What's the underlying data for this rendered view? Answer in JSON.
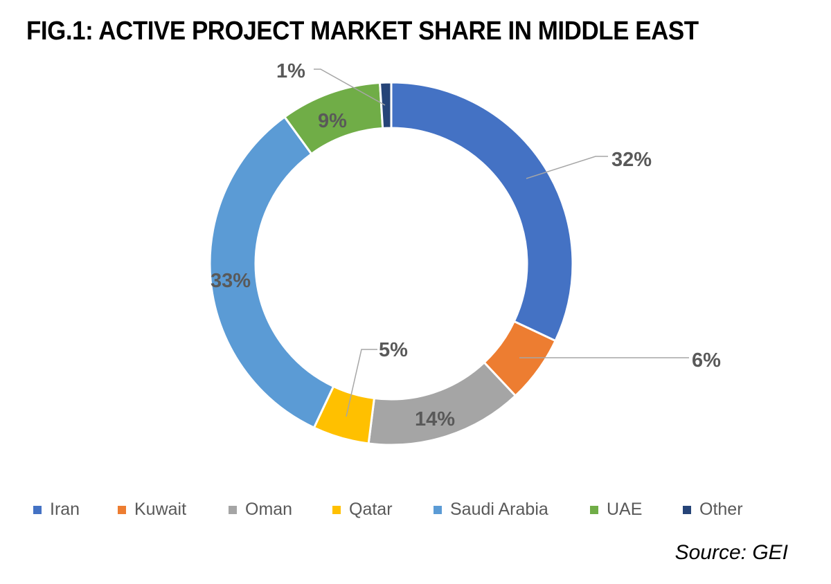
{
  "chart_data": {
    "type": "pie",
    "variant": "donut",
    "title": "FIG.1: ACTIVE PROJECT MARKET SHARE IN MIDDLE EAST",
    "categories": [
      "Iran",
      "Kuwait",
      "Oman",
      "Qatar",
      "Saudi Arabia",
      "UAE",
      "Other"
    ],
    "values": [
      32,
      6,
      14,
      5,
      33,
      9,
      1
    ],
    "data_labels": [
      "32%",
      "6%",
      "14%",
      "5%",
      "33%",
      "9%",
      "1%"
    ],
    "colors": [
      "#4472C4",
      "#ED7D31",
      "#A5A5A5",
      "#FFC000",
      "#5B9BD5",
      "#70AD47",
      "#264478"
    ],
    "legend_position": "bottom",
    "source": "Source: GEI"
  }
}
